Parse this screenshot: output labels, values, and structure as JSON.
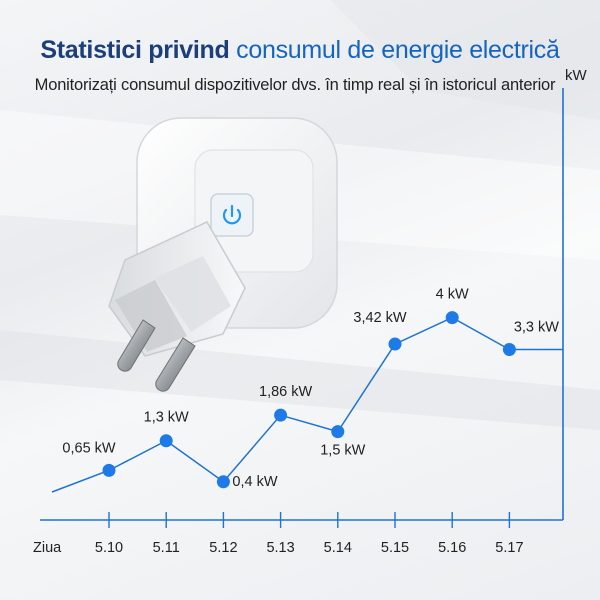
{
  "header": {
    "title_bold": "Statistici privind",
    "title_accent": "consumul de energie electrică",
    "subtitle": "Monitorizați consumul dispozitivelor dvs. în timp real și în istoricul anterior"
  },
  "colors": {
    "line": "#1e73d2",
    "axis": "#1e73d2",
    "marker": "#1e7ae6",
    "title": "#1c3f7a",
    "accent": "#1565c0",
    "button_icon": "#2196f3"
  },
  "product": {
    "icon": "smart-plug-power-button-icon"
  },
  "chart_data": {
    "type": "line",
    "xlabel": "Ziua",
    "ylabel": "kW",
    "categories": [
      "5.10",
      "5.11",
      "5.12",
      "5.13",
      "5.14",
      "5.15",
      "5.16",
      "5.17"
    ],
    "values": [
      0.65,
      1.3,
      0.4,
      1.86,
      1.5,
      3.42,
      4,
      3.3
    ],
    "labels": [
      "0,65 kW",
      "1,3 kW",
      "0,4 kW",
      "1,86 kW",
      "1,5 kW",
      "3,42 kW",
      "4 kW",
      "3,3 kW"
    ],
    "grid": false,
    "legend": "none"
  }
}
